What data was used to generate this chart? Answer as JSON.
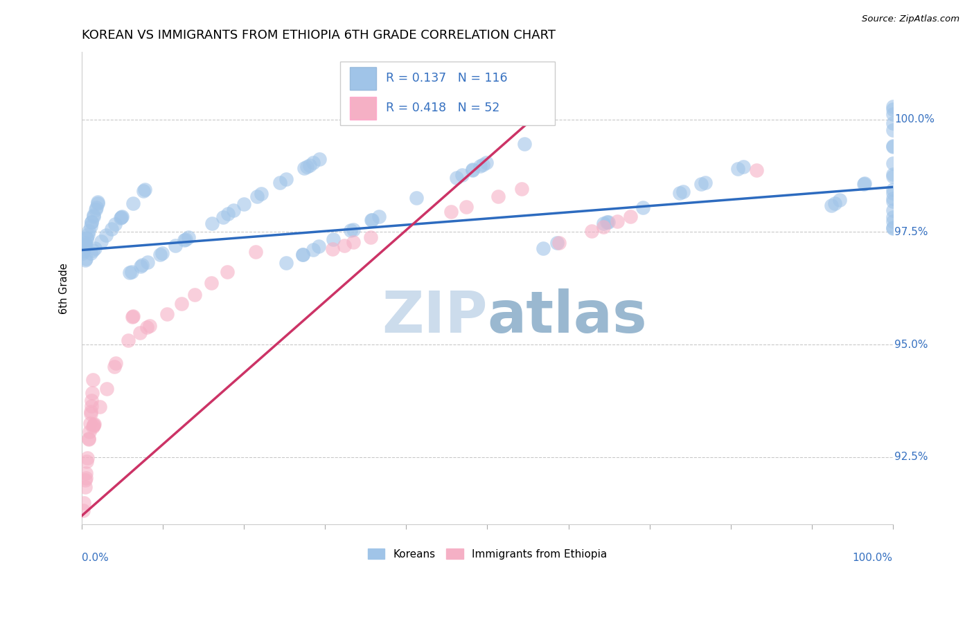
{
  "title": "KOREAN VS IMMIGRANTS FROM ETHIOPIA 6TH GRADE CORRELATION CHART",
  "source": "Source: ZipAtlas.com",
  "ylabel": "6th Grade",
  "yaxis_values": [
    92.5,
    95.0,
    97.5,
    100.0
  ],
  "xlim": [
    0.0,
    100.0
  ],
  "ylim": [
    91.0,
    101.5
  ],
  "legend_R1": "R = 0.137",
  "legend_N1": "N = 116",
  "legend_R2": "R = 0.418",
  "legend_N2": "N = 52",
  "blue_color": "#a0c4e8",
  "pink_color": "#f5b0c5",
  "blue_line_color": "#2d6bbf",
  "pink_line_color": "#cc3366",
  "text_blue": "#3570c0",
  "watermark_zip": "#ccdcec",
  "watermark_atlas": "#9ab8d0",
  "title_fontsize": 13,
  "koreans_label": "Koreans",
  "ethiopia_label": "Immigrants from Ethiopia",
  "blue_trend_x": [
    0.0,
    100.0
  ],
  "blue_trend_y": [
    97.1,
    98.5
  ],
  "pink_trend_x": [
    0.0,
    58.0
  ],
  "pink_trend_y": [
    91.2,
    100.4
  ],
  "grid_color": "#bbbbbb",
  "spine_color": "#cccccc"
}
